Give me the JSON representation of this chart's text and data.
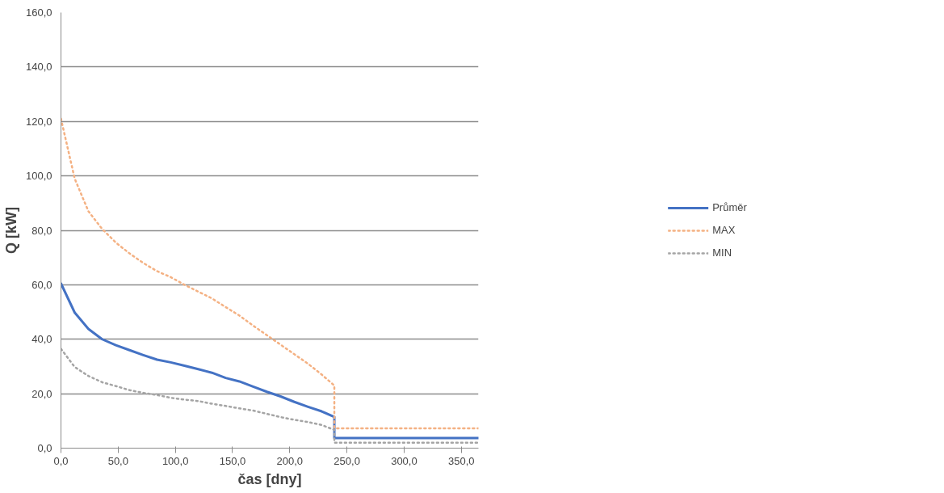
{
  "chart_data": {
    "type": "line",
    "xlabel": "čas [dny]",
    "ylabel": "Q [kW]",
    "xlim": [
      0,
      365
    ],
    "ylim": [
      0,
      160
    ],
    "xticks": [
      {
        "value": 0,
        "label": "0,0"
      },
      {
        "value": 50,
        "label": "50,0"
      },
      {
        "value": 100,
        "label": "100,0"
      },
      {
        "value": 150,
        "label": "150,0"
      },
      {
        "value": 200,
        "label": "200,0"
      },
      {
        "value": 250,
        "label": "250,0"
      },
      {
        "value": 300,
        "label": "300,0"
      },
      {
        "value": 350,
        "label": "350,0"
      }
    ],
    "yticks": [
      {
        "value": 0,
        "label": "0,0"
      },
      {
        "value": 20,
        "label": "20,0"
      },
      {
        "value": 40,
        "label": "40,0"
      },
      {
        "value": 60,
        "label": "60,0"
      },
      {
        "value": 80,
        "label": "80,0"
      },
      {
        "value": 100,
        "label": "100,0"
      },
      {
        "value": 120,
        "label": "120,0"
      },
      {
        "value": 140,
        "label": "140,0"
      },
      {
        "value": 160,
        "label": "160,0"
      }
    ],
    "grid": "y",
    "legend": "right",
    "marker": "none",
    "series": [
      {
        "name": "Průměr",
        "color": "#4472c4",
        "line_style": "solid",
        "x": [
          0,
          12,
          24,
          36,
          48,
          60,
          72,
          84,
          96,
          108,
          120,
          132,
          144,
          156,
          168,
          180,
          192,
          204,
          216,
          228,
          239,
          239,
          365
        ],
        "values": [
          60.5,
          49.8,
          43.8,
          40,
          37.8,
          36,
          34.2,
          32.5,
          31.5,
          30.3,
          29,
          27.7,
          25.8,
          24.5,
          22.6,
          20.7,
          19,
          17,
          15.2,
          13.5,
          11.5,
          3.7,
          3.7
        ]
      },
      {
        "name": "MAX",
        "color": "#f4b183",
        "line_style": "dotted",
        "x": [
          0,
          12,
          24,
          36,
          48,
          60,
          72,
          84,
          96,
          108,
          120,
          132,
          144,
          156,
          168,
          180,
          192,
          204,
          216,
          228,
          239,
          239,
          365
        ],
        "values": [
          121,
          99,
          87,
          80.5,
          75.5,
          71.5,
          68,
          65,
          62.8,
          60,
          57.5,
          55,
          51.8,
          48.7,
          45,
          41.5,
          38,
          34.5,
          31,
          27,
          23,
          7.3,
          7.3
        ]
      },
      {
        "name": "MIN",
        "color": "#a5a5a5",
        "line_style": "dotted",
        "x": [
          0,
          12,
          24,
          36,
          48,
          60,
          72,
          84,
          96,
          108,
          120,
          132,
          144,
          156,
          168,
          180,
          192,
          204,
          216,
          228,
          239,
          239,
          365
        ],
        "values": [
          36.5,
          29.8,
          26.5,
          24.2,
          22.8,
          21.3,
          20.3,
          19.5,
          18.5,
          17.8,
          17.3,
          16.3,
          15.5,
          14.6,
          13.8,
          12.6,
          11.4,
          10.4,
          9.6,
          8.5,
          6.7,
          2,
          2
        ]
      }
    ]
  }
}
